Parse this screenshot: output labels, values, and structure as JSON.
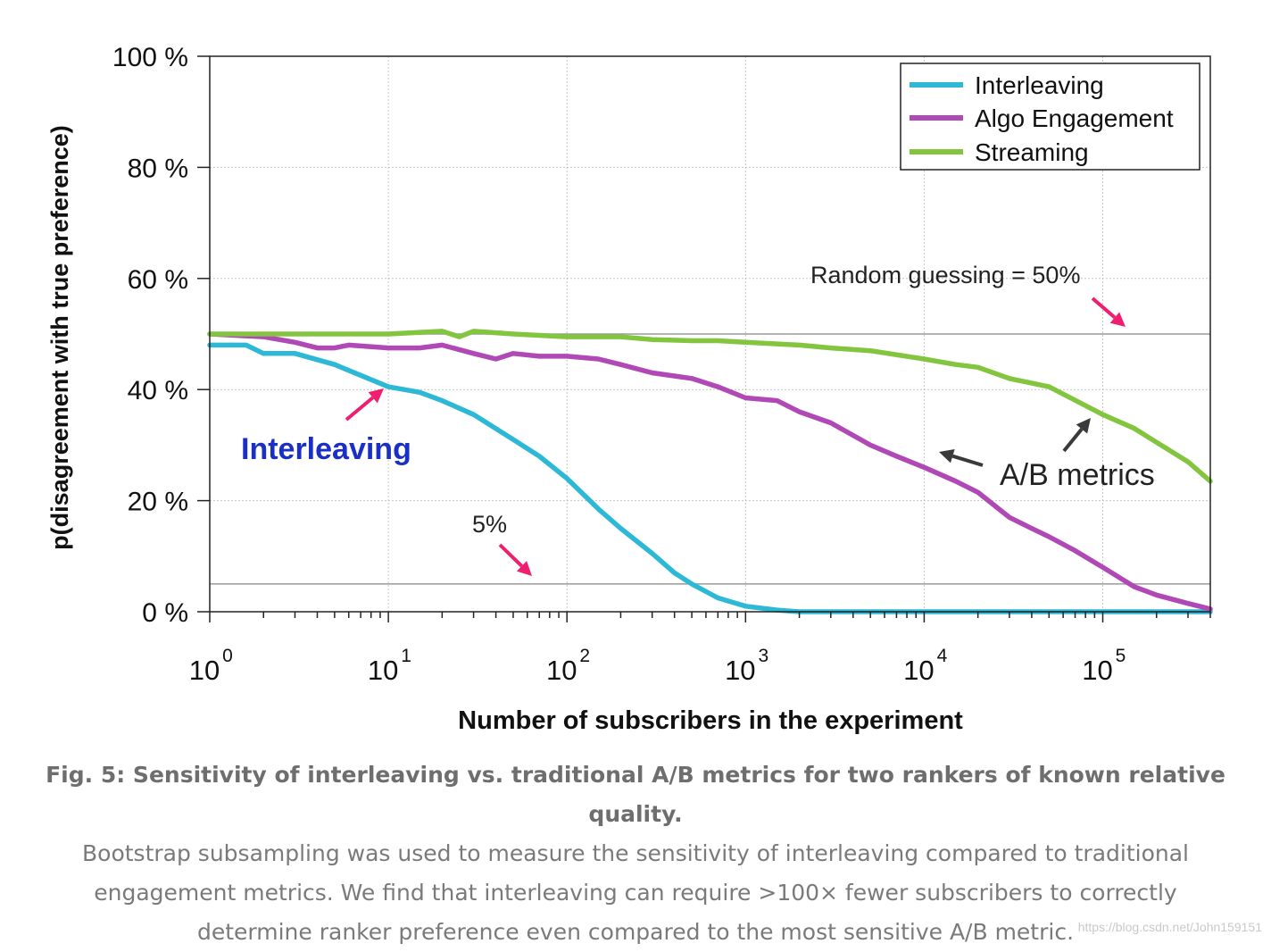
{
  "chart_data": {
    "type": "line",
    "x_scale": "log",
    "xlim": [
      1,
      400000
    ],
    "ylim": [
      0,
      100
    ],
    "xlabel": "Number of subscribers in the experiment",
    "ylabel": "p(disagreement with true preference)",
    "x_ticks": [
      {
        "value": 1,
        "base": "10",
        "exp": "0"
      },
      {
        "value": 10,
        "base": "10",
        "exp": "1"
      },
      {
        "value": 100,
        "base": "10",
        "exp": "2"
      },
      {
        "value": 1000,
        "base": "10",
        "exp": "3"
      },
      {
        "value": 10000,
        "base": "10",
        "exp": "4"
      },
      {
        "value": 100000,
        "base": "10",
        "exp": "5"
      }
    ],
    "y_ticks": [
      {
        "value": 0,
        "label": "0 %"
      },
      {
        "value": 20,
        "label": "20 %"
      },
      {
        "value": 40,
        "label": "40 %"
      },
      {
        "value": 60,
        "label": "60 %"
      },
      {
        "value": 80,
        "label": "80 %"
      },
      {
        "value": 100,
        "label": "100 %"
      }
    ],
    "grid": true,
    "legend_position": "top-right",
    "series": [
      {
        "name": "Interleaving",
        "color": "#2db8d6",
        "x": [
          1,
          1.6,
          2,
          3,
          5,
          10,
          15,
          20,
          30,
          50,
          70,
          100,
          150,
          200,
          300,
          400,
          500,
          700,
          1000,
          1500,
          2000,
          3000,
          10000,
          100000,
          400000
        ],
        "y": [
          48,
          48,
          46.5,
          46.5,
          44.5,
          40.5,
          39.5,
          38,
          35.5,
          31,
          28,
          24,
          18.5,
          15,
          10.5,
          7,
          5,
          2.5,
          1,
          0.3,
          0,
          0,
          0,
          0,
          0
        ]
      },
      {
        "name": "Algo Engagement",
        "color": "#b048b5",
        "x": [
          1,
          2,
          3,
          4,
          5,
          6,
          10,
          15,
          20,
          30,
          40,
          50,
          70,
          100,
          150,
          200,
          300,
          500,
          700,
          1000,
          1500,
          2000,
          3000,
          5000,
          7000,
          10000,
          15000,
          20000,
          30000,
          40000,
          50000,
          70000,
          100000,
          150000,
          200000,
          300000,
          400000
        ],
        "y": [
          50,
          49.5,
          48.5,
          47.5,
          47.5,
          48,
          47.5,
          47.5,
          48,
          46.5,
          45.5,
          46.5,
          46,
          46,
          45.5,
          44.5,
          43,
          42,
          40.5,
          38.5,
          38,
          36,
          34,
          30,
          28,
          26,
          23.5,
          21.5,
          17,
          15,
          13.5,
          11,
          8,
          4.5,
          3,
          1.5,
          0.5
        ]
      },
      {
        "name": "Streaming",
        "color": "#84c540",
        "x": [
          1,
          2,
          5,
          10,
          20,
          25,
          30,
          50,
          100,
          200,
          300,
          500,
          700,
          1000,
          2000,
          3000,
          5000,
          10000,
          15000,
          20000,
          30000,
          50000,
          100000,
          150000,
          200000,
          300000,
          400000
        ],
        "y": [
          50,
          50,
          50,
          50,
          50.5,
          49.5,
          50.5,
          50,
          49.5,
          49.5,
          49,
          48.8,
          48.8,
          48.5,
          48,
          47.5,
          47,
          45.5,
          44.5,
          44,
          42,
          40.5,
          35.5,
          33,
          30.5,
          27,
          23.5
        ]
      }
    ],
    "reference_lines": [
      {
        "y": 50,
        "label": "Random guessing = 50%"
      },
      {
        "y": 5,
        "label": "5%"
      }
    ],
    "annotations": [
      {
        "text": "Interleaving",
        "color": "#1a2fc4"
      },
      {
        "text": "A/B metrics",
        "color": "#222222"
      }
    ],
    "arrow_colors": {
      "pink": "#ef1e6e",
      "dark": "#3a3a3a"
    }
  },
  "caption": {
    "bold": "Fig. 5: Sensitivity of interleaving vs. traditional A/B metrics for two rankers of known relative quality.",
    "text": "Bootstrap subsampling was used to measure the sensitivity of interleaving compared to traditional engagement metrics. We find that interleaving can require >100× fewer subscribers to correctly determine ranker preference even compared to the most sensitive A/B metric."
  },
  "watermark": "https://blog.csdn.net/John159151"
}
